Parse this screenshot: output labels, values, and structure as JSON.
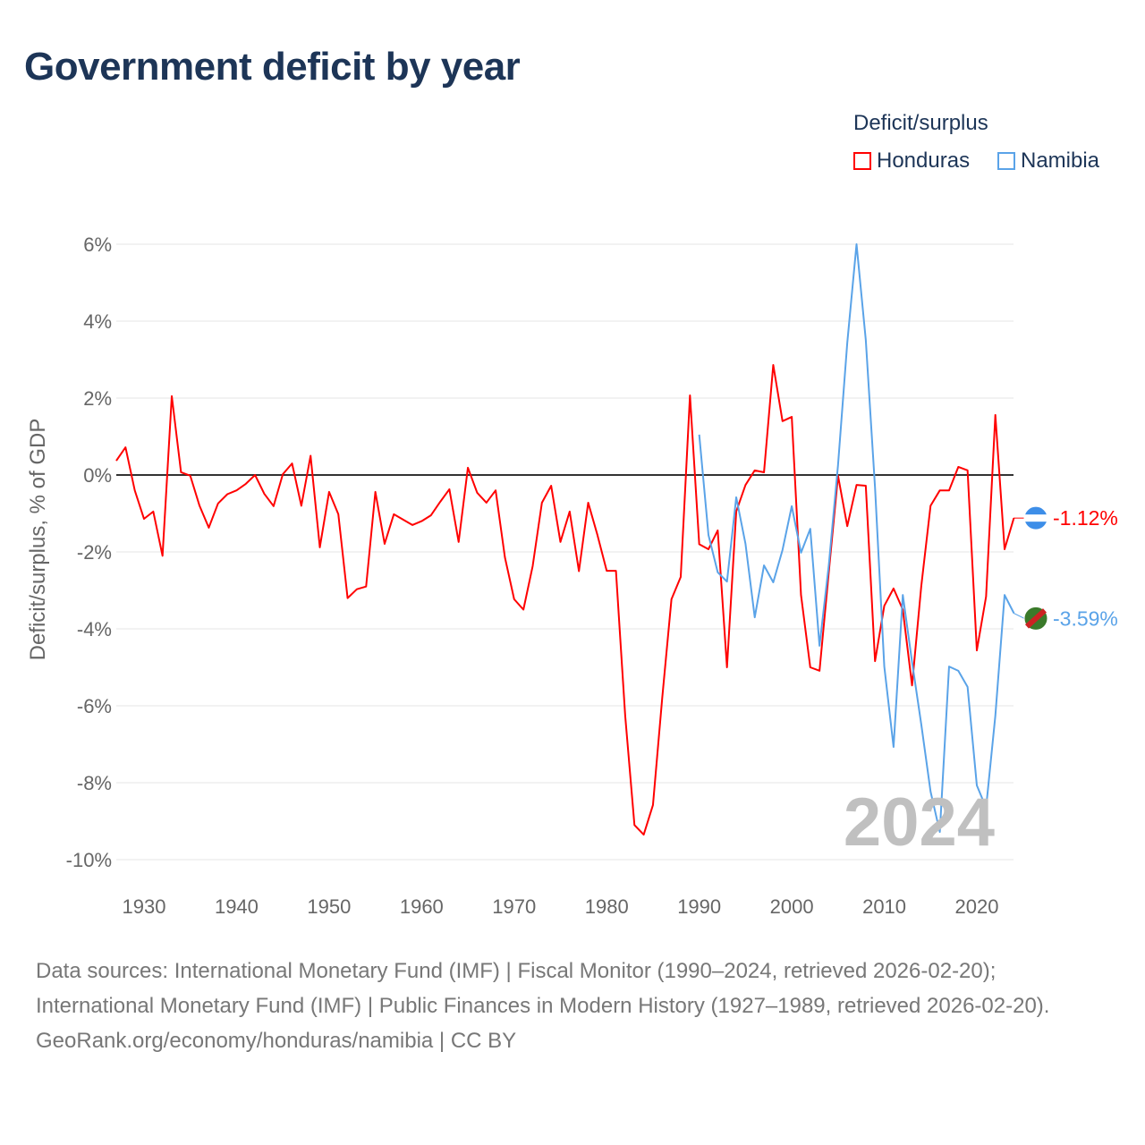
{
  "chart_data": {
    "type": "line",
    "title": "Government deficit by year",
    "ylabel": "Deficit/surplus, % of GDP",
    "xlabel": "",
    "legend_title": "Deficit/surplus",
    "legend_position": "top-right",
    "xlim": [
      1927,
      2024
    ],
    "ylim": [
      -10,
      6
    ],
    "xticks": [
      1930,
      1940,
      1950,
      1960,
      1970,
      1980,
      1990,
      2000,
      2010,
      2020
    ],
    "yticks": [
      6,
      4,
      2,
      0,
      -2,
      -4,
      -6,
      -8,
      -10
    ],
    "ytick_labels": [
      "6%",
      "4%",
      "2%",
      "0%",
      "-2%",
      "-4%",
      "-6%",
      "-8%",
      "-10%"
    ],
    "year_label": "2024",
    "series": [
      {
        "name": "Honduras",
        "color": "#ff0000",
        "start": 1927,
        "end_label": "-1.12%",
        "values": [
          0.37,
          0.72,
          -0.4,
          -1.14,
          -0.95,
          -2.1,
          2.05,
          0.07,
          -0.02,
          -0.8,
          -1.37,
          -0.74,
          -0.5,
          -0.4,
          -0.23,
          0,
          -0.49,
          -0.81,
          0.02,
          0.3,
          -0.8,
          0.5,
          -1.88,
          -0.44,
          -1.02,
          -3.2,
          -2.97,
          -2.9,
          -0.44,
          -1.79,
          -1.02,
          -1.16,
          -1.3,
          -1.2,
          -1.05,
          -0.7,
          -0.37,
          -1.74,
          0.19,
          -0.46,
          -0.72,
          -0.4,
          -2.14,
          -3.23,
          -3.5,
          -2.37,
          -0.72,
          -0.28,
          -1.74,
          -0.95,
          -2.5,
          -0.72,
          -1.56,
          -2.49,
          -2.49,
          -6.26,
          -9.1,
          -9.35,
          -8.58,
          -5.8,
          -3.23,
          -2.65,
          2.07,
          -1.8,
          -1.93,
          -1.44,
          -5.0,
          -0.95,
          -0.26,
          0.12,
          0.07,
          2.86,
          1.4,
          1.51,
          -3.12,
          -5.0,
          -5.09,
          -2.53,
          -0.02,
          -1.33,
          -0.26,
          -0.28,
          -4.84,
          -3.4,
          -2.95,
          -3.5,
          -5.47,
          -2.88,
          -0.8,
          -0.4,
          -0.4,
          0.21,
          0.12,
          -4.56,
          -3.16,
          1.56,
          -1.93,
          -1.12
        ]
      },
      {
        "name": "Namibia",
        "color": "#5aa3e8",
        "start": 1990,
        "end_label": "-3.59%",
        "values": [
          1.05,
          -1.56,
          -2.53,
          -2.77,
          -0.58,
          -1.79,
          -3.7,
          -2.35,
          -2.79,
          -1.95,
          -0.81,
          -2.02,
          -1.4,
          -4.44,
          -2.35,
          0.26,
          3.44,
          6.0,
          3.51,
          -0.33,
          -4.98,
          -7.07,
          -3.12,
          -4.86,
          -6.49,
          -8.23,
          -9.28,
          -4.98,
          -5.09,
          -5.51,
          -8.07,
          -8.65,
          -6.26,
          -3.12,
          -3.59
        ]
      }
    ]
  },
  "sources": {
    "line1": "Data sources: International Monetary Fund (IMF) | Fiscal Monitor (1990–2024, retrieved 2026-02-20); International Monetary Fund (IMF) | Public Finances in Modern History (1927–1989, retrieved 2026-02-20).",
    "line2": "GeoRank.org/economy/honduras/namibia | CC BY"
  }
}
